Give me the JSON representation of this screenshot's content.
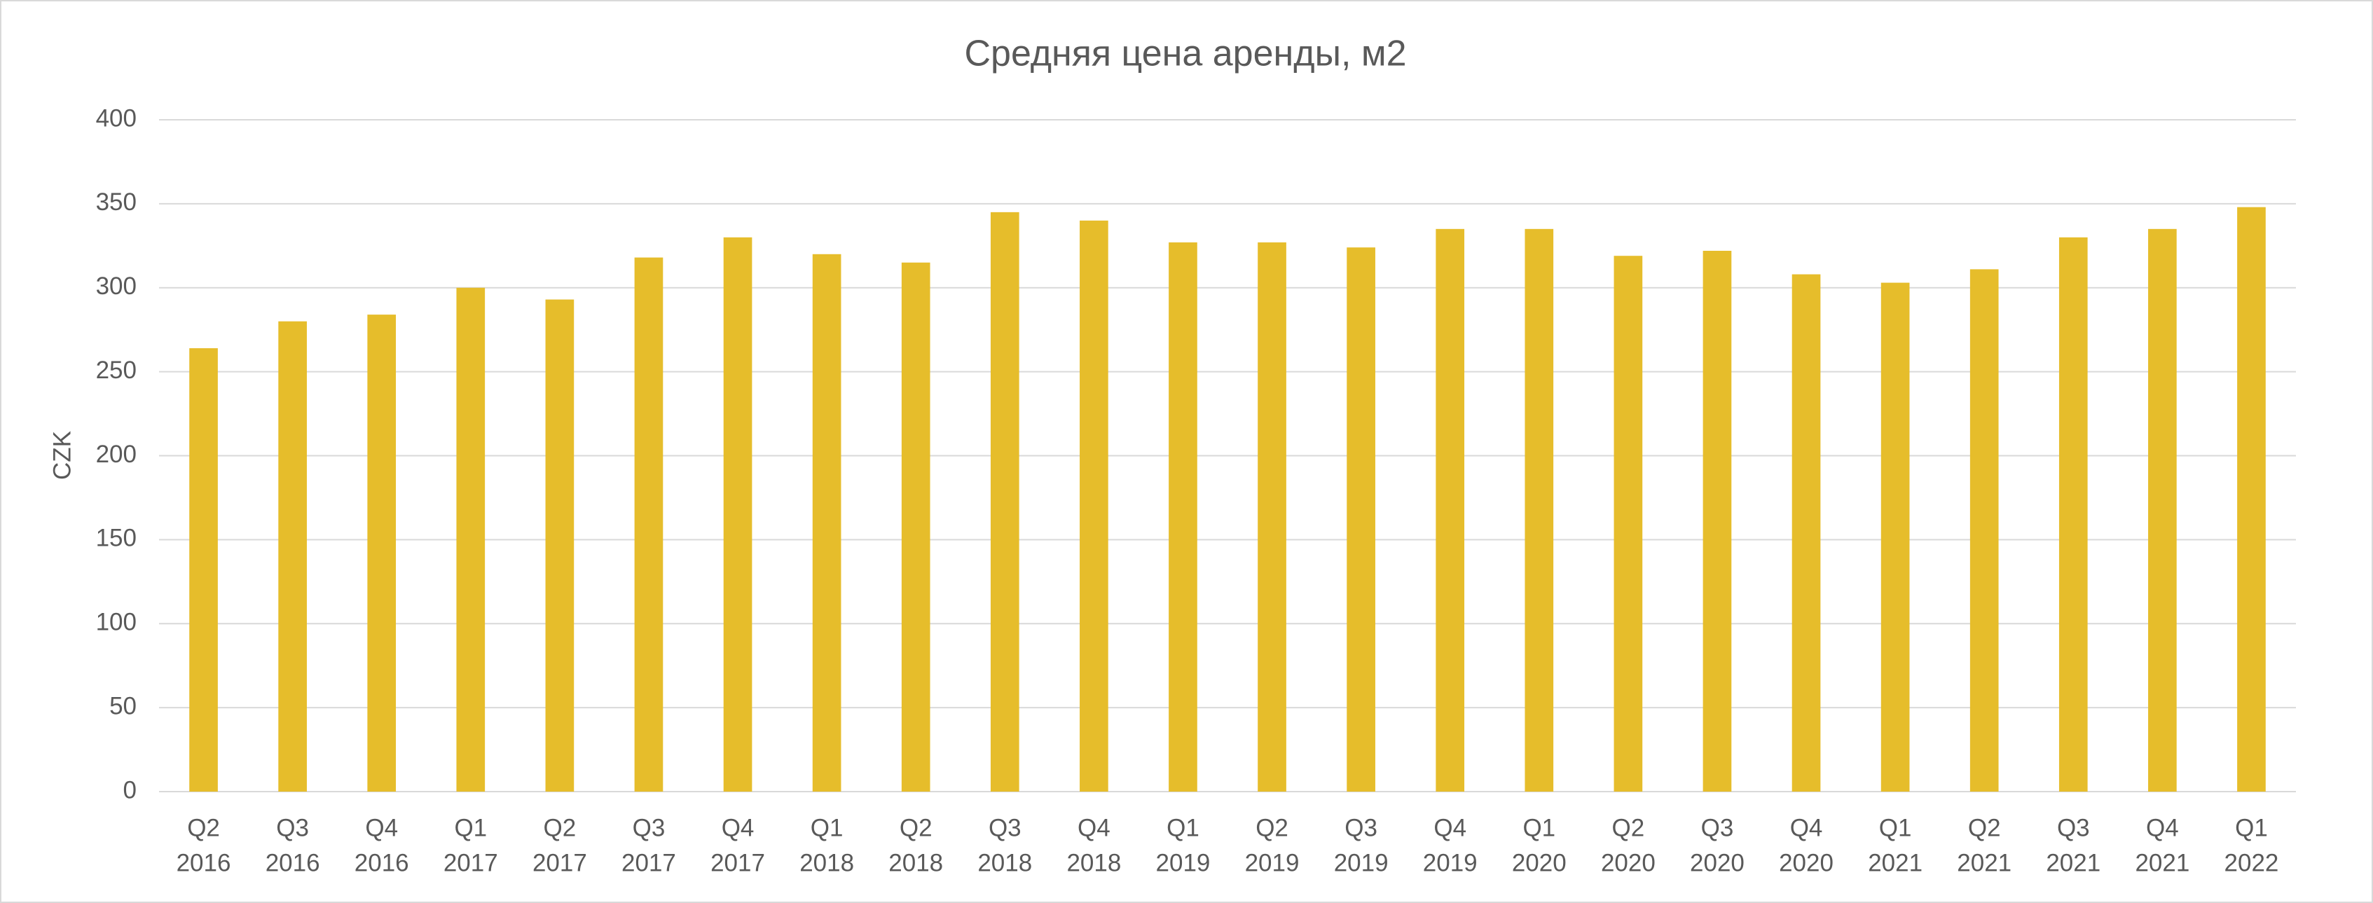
{
  "chart_data": {
    "type": "bar",
    "title": "Средняя цена аренды, м2",
    "y_label": "CZK",
    "categories": [
      [
        "Q2",
        "2016"
      ],
      [
        "Q3",
        "2016"
      ],
      [
        "Q4",
        "2016"
      ],
      [
        "Q1",
        "2017"
      ],
      [
        "Q2",
        "2017"
      ],
      [
        "Q3",
        "2017"
      ],
      [
        "Q4",
        "2017"
      ],
      [
        "Q1",
        "2018"
      ],
      [
        "Q2",
        "2018"
      ],
      [
        "Q3",
        "2018"
      ],
      [
        "Q4",
        "2018"
      ],
      [
        "Q1",
        "2019"
      ],
      [
        "Q2",
        "2019"
      ],
      [
        "Q3",
        "2019"
      ],
      [
        "Q4",
        "2019"
      ],
      [
        "Q1",
        "2020"
      ],
      [
        "Q2",
        "2020"
      ],
      [
        "Q3",
        "2020"
      ],
      [
        "Q4",
        "2020"
      ],
      [
        "Q1",
        "2021"
      ],
      [
        "Q2",
        "2021"
      ],
      [
        "Q3",
        "2021"
      ],
      [
        "Q4",
        "2021"
      ],
      [
        "Q1",
        "2022"
      ]
    ],
    "values": [
      264,
      280,
      284,
      300,
      293,
      318,
      330,
      320,
      315,
      345,
      340,
      327,
      327,
      324,
      335,
      335,
      319,
      322,
      308,
      303,
      311,
      330,
      335,
      348
    ],
    "color": "#e6bd2b",
    "ylim": [
      0,
      400
    ],
    "yticks": [
      0,
      50,
      100,
      150,
      200,
      250,
      300,
      350,
      400
    ],
    "grid": true
  }
}
